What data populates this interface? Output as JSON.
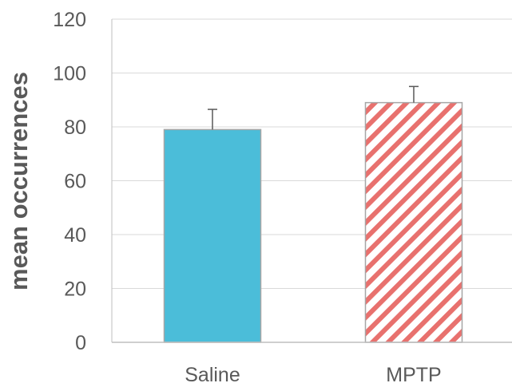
{
  "chart_data": {
    "type": "bar",
    "title": "",
    "xlabel": "",
    "ylabel": "mean occurrences",
    "categories": [
      "Saline",
      "MPTP"
    ],
    "values": [
      79,
      89
    ],
    "errors": [
      7.5,
      6
    ],
    "ylim": [
      0,
      120
    ],
    "yticks": [
      0,
      20,
      40,
      60,
      80,
      100,
      120
    ],
    "grid": true,
    "legend": "none",
    "colors": {
      "bar_fills": [
        "#4bbdd9",
        "#ffffff"
      ],
      "bar_hatch": [
        null,
        "#e8716e"
      ],
      "bar_borders": [
        "#a6a6a6",
        "#a6a6a6"
      ],
      "grid": "#d9d9d9",
      "axis": "#bfbfbf",
      "error_bar": "#595959"
    }
  }
}
